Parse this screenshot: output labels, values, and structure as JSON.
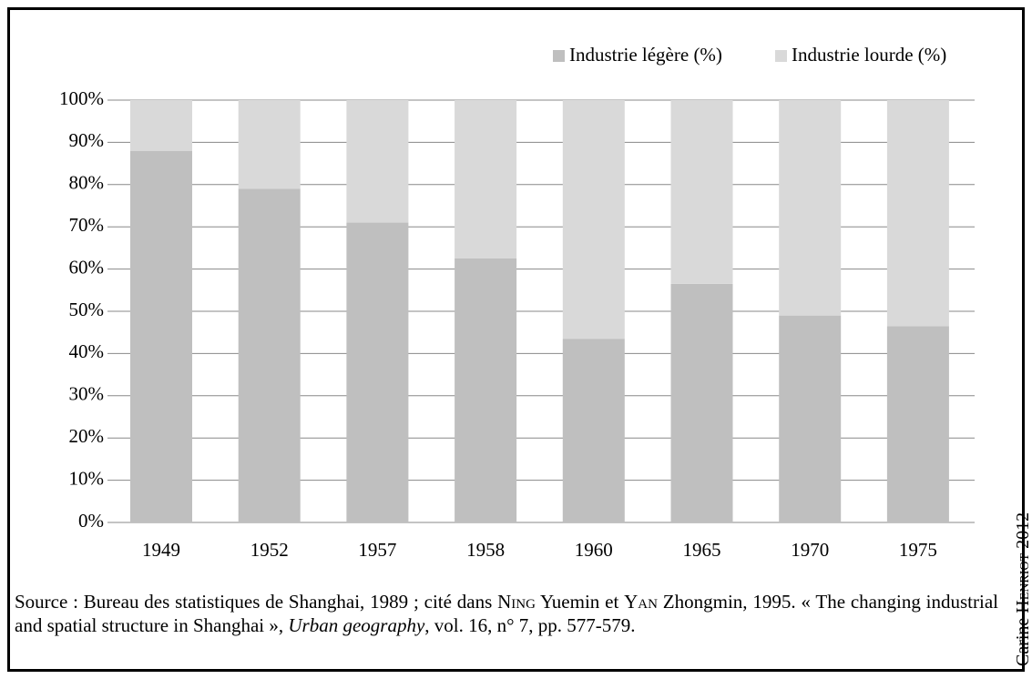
{
  "chart_data": {
    "type": "stacked_bar",
    "categories": [
      "1949",
      "1952",
      "1957",
      "1958",
      "1960",
      "1965",
      "1970",
      "1975"
    ],
    "series": [
      {
        "name": "Industrie légère (%)",
        "color": "#bfbfbf",
        "values": [
          88,
          79,
          71,
          62.5,
          43.5,
          56.5,
          49,
          46.5
        ]
      },
      {
        "name": "Industrie lourde (%)",
        "color": "#d9d9d9",
        "values": [
          12,
          21,
          29,
          37.5,
          56.5,
          43.5,
          51,
          53.5
        ]
      }
    ],
    "ylim": [
      0,
      100
    ],
    "yticks": [
      {
        "value": 0,
        "label": "0%"
      },
      {
        "value": 10,
        "label": "10%"
      },
      {
        "value": 20,
        "label": "20%"
      },
      {
        "value": 30,
        "label": "30%"
      },
      {
        "value": 40,
        "label": "40%"
      },
      {
        "value": 50,
        "label": "50%"
      },
      {
        "value": 60,
        "label": "60%"
      },
      {
        "value": 70,
        "label": "70%"
      },
      {
        "value": 80,
        "label": "80%"
      },
      {
        "value": 90,
        "label": "90%"
      },
      {
        "value": 100,
        "label": "100%"
      }
    ],
    "grid": true,
    "legend": "top-right",
    "source": [
      "Source : Bureau des statistiques de Shanghai, 1989 ; cité dans ",
      "Ning",
      " Yuemin et ",
      "Yan",
      " Zhongmin, 1995. « The changing industrial and spatial structure in Shanghai », ",
      "Urban geography",
      ", vol. 16, n° 7, pp. 577-579."
    ],
    "credit": [
      "Carine ",
      "Henriot",
      " 2012"
    ]
  }
}
